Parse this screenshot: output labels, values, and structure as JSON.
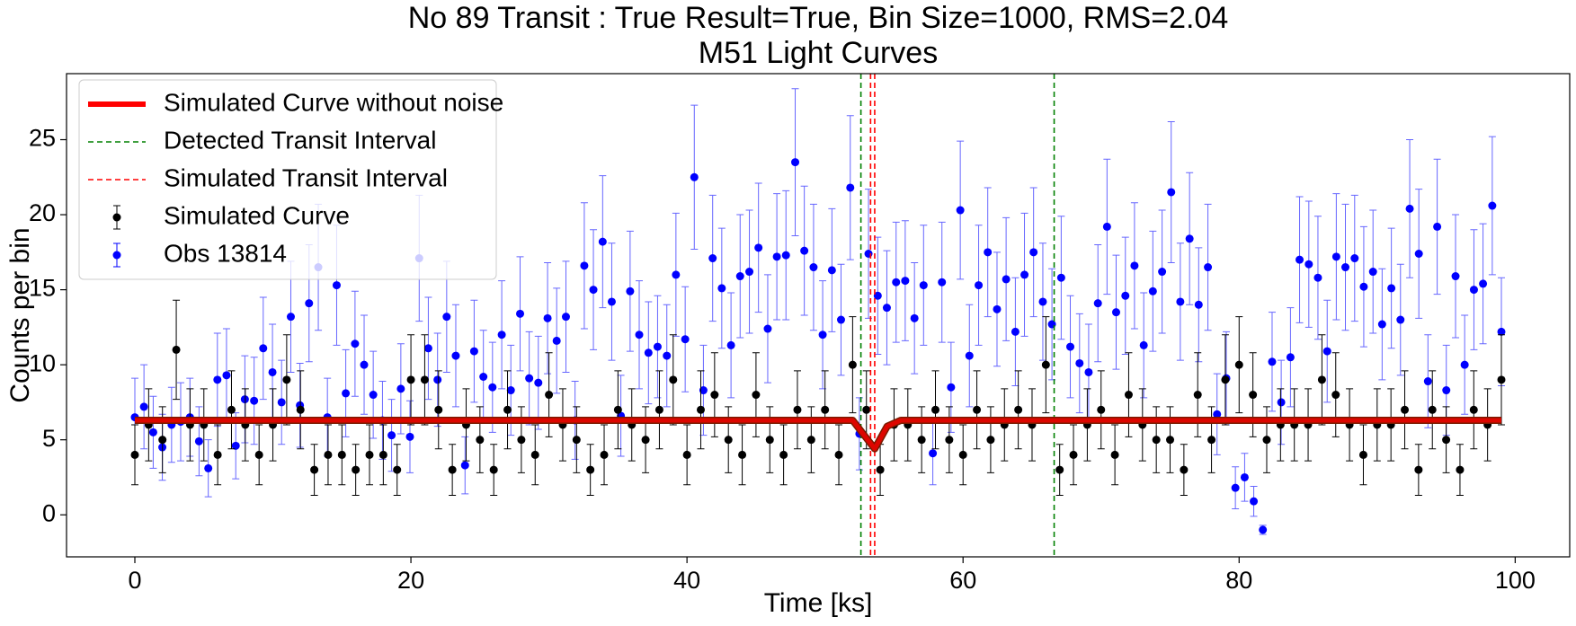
{
  "chart_data": {
    "type": "errorbar",
    "title": "No 89 Transit : True Result=True, Bin Size=1000, RMS=2.04",
    "subtitle": "M51 Light Curves",
    "xlabel": "Time [ks]",
    "ylabel": "Counts per bin",
    "xlim": [
      -4.95,
      103.95
    ],
    "ylim": [
      -2.8,
      29.4
    ],
    "xticks": [
      0,
      20,
      40,
      60,
      80,
      100
    ],
    "yticks": [
      0,
      5,
      10,
      15,
      20,
      25
    ],
    "legend": "upper left",
    "series": [
      {
        "name": "Simulated Curve without noise",
        "type": "line",
        "color": "#ff0000",
        "x": [
          0,
          52,
          53.6,
          54.5,
          55.5,
          99
        ],
        "values": [
          6.3,
          6.3,
          4.4,
          5.9,
          6.3,
          6.3
        ]
      },
      {
        "name": "Detected Transit Interval",
        "type": "vline",
        "color": "#008000",
        "x": [
          52.6,
          66.6
        ]
      },
      {
        "name": "Simulated Transit Interval",
        "type": "vline",
        "color": "#ff0000",
        "x": [
          53.3,
          53.6
        ]
      },
      {
        "name": "Simulated Curve",
        "type": "errorbar",
        "color": "#000000",
        "x": [
          0,
          1,
          2,
          3,
          4,
          5,
          6,
          7,
          8,
          9,
          10,
          11,
          12,
          13,
          14,
          15,
          16,
          17,
          18,
          19,
          20,
          21,
          22,
          23,
          24,
          25,
          26,
          27,
          28,
          29,
          30,
          31,
          32,
          33,
          34,
          35,
          36,
          37,
          38,
          39,
          40,
          41,
          42,
          43,
          44,
          45,
          46,
          47,
          48,
          49,
          50,
          51,
          52,
          53,
          54,
          55,
          56,
          57,
          58,
          59,
          60,
          61,
          62,
          63,
          64,
          65,
          66,
          67,
          68,
          69,
          70,
          71,
          72,
          73,
          74,
          75,
          76,
          77,
          78,
          79,
          80,
          81,
          82,
          83,
          84,
          85,
          86,
          87,
          88,
          89,
          90,
          91,
          92,
          93,
          94,
          95,
          96,
          97,
          98,
          99
        ],
        "values": [
          4,
          6,
          5,
          11,
          6,
          6,
          4,
          7,
          6,
          4,
          6,
          9,
          7,
          3,
          4,
          4,
          3,
          4,
          4,
          3,
          9,
          9,
          7,
          3,
          6,
          5,
          3,
          7,
          5,
          4,
          8,
          6,
          5,
          3,
          4,
          7,
          6,
          5,
          7,
          9,
          4,
          7,
          8,
          5,
          4,
          8,
          5,
          4,
          7,
          5,
          7,
          4,
          10,
          7,
          3,
          6,
          6,
          5,
          7,
          5,
          4,
          7,
          5,
          6,
          7,
          6,
          10,
          3,
          4,
          6,
          7,
          4,
          8,
          6,
          5,
          5,
          3,
          8,
          5,
          9,
          10,
          8,
          5,
          6,
          6,
          6,
          9,
          8,
          6,
          4,
          6,
          6,
          7,
          3,
          7,
          5,
          3,
          7,
          6,
          9
        ],
        "errors": [
          2,
          2.4,
          2.2,
          3.3,
          2.4,
          2.4,
          2,
          2.6,
          2.4,
          2,
          2.4,
          3,
          2.6,
          1.7,
          2,
          2,
          1.7,
          2,
          2,
          1.7,
          3,
          3,
          2.6,
          1.7,
          2.4,
          2.2,
          1.7,
          2.6,
          2.2,
          2,
          2.8,
          2.4,
          2.2,
          1.7,
          2,
          2.6,
          2.4,
          2.2,
          2.6,
          3,
          2,
          2.6,
          2.8,
          2.2,
          2,
          2.8,
          2.2,
          2,
          2.6,
          2.2,
          2.6,
          2,
          3.2,
          2.6,
          1.7,
          2.4,
          2.4,
          2.2,
          2.6,
          2.2,
          2,
          2.6,
          2.2,
          2.4,
          2.6,
          2.4,
          3.2,
          1.7,
          2,
          2.4,
          2.6,
          2,
          2.8,
          2.4,
          2.2,
          2.2,
          1.7,
          2.8,
          2.2,
          3,
          3.2,
          2.8,
          2.2,
          2.4,
          2.4,
          2.4,
          3,
          2.8,
          2.4,
          2,
          2.4,
          2.4,
          2.6,
          1.7,
          2.6,
          2.2,
          1.7,
          2.6,
          2.4,
          3
        ]
      },
      {
        "name": "Obs 13814",
        "type": "errorbar",
        "color": "#0000ff",
        "x": [
          0,
          0.66,
          1.33,
          1.99,
          2.66,
          3.32,
          3.99,
          4.65,
          5.32,
          5.98,
          6.64,
          7.31,
          7.97,
          8.64,
          9.3,
          9.97,
          10.63,
          11.3,
          11.96,
          12.62,
          13.29,
          13.95,
          14.62,
          15.28,
          15.95,
          16.61,
          17.27,
          17.94,
          18.6,
          19.27,
          19.93,
          20.6,
          21.26,
          21.93,
          22.59,
          23.25,
          23.92,
          24.58,
          25.25,
          25.91,
          26.58,
          27.24,
          27.91,
          28.57,
          29.23,
          29.9,
          30.56,
          31.23,
          31.89,
          32.56,
          33.22,
          33.89,
          34.55,
          35.21,
          35.88,
          36.54,
          37.21,
          37.87,
          38.54,
          39.2,
          39.87,
          40.53,
          41.19,
          41.86,
          42.52,
          43.19,
          43.85,
          44.52,
          45.18,
          45.85,
          46.51,
          47.17,
          47.84,
          48.5,
          49.17,
          49.83,
          50.5,
          51.16,
          51.83,
          52.49,
          53.15,
          53.82,
          54.48,
          55.15,
          55.81,
          56.48,
          57.14,
          57.81,
          58.47,
          59.13,
          59.8,
          60.46,
          61.13,
          61.79,
          62.46,
          63.12,
          63.79,
          64.45,
          65.11,
          65.78,
          66.44,
          67.11,
          67.77,
          68.44,
          69.1,
          69.77,
          70.43,
          71.09,
          71.76,
          72.42,
          73.09,
          73.75,
          74.42,
          75.08,
          75.74,
          76.41,
          77.07,
          77.74,
          78.4,
          79.07,
          79.73,
          80.4,
          81.06,
          81.72,
          82.39,
          83.05,
          83.72,
          84.38,
          85.05,
          85.71,
          86.38,
          87.04,
          87.7,
          88.37,
          89.03,
          89.7,
          90.36,
          91.03,
          91.69,
          92.36,
          93.02,
          93.68,
          94.35,
          95.01,
          95.68,
          96.34,
          97.01,
          97.67,
          98.34,
          99
        ],
        "values": [
          6.5,
          7.2,
          5.5,
          4.5,
          6.0,
          6.2,
          6.5,
          4.9,
          3.1,
          9.0,
          9.3,
          4.6,
          7.7,
          7.6,
          11.1,
          9.5,
          7.5,
          13.2,
          7.3,
          14.1,
          16.5,
          6.5,
          15.3,
          8.1,
          11.4,
          10.0,
          8.0,
          6.3,
          5.3,
          8.4,
          5.2,
          17.1,
          11.1,
          9.0,
          13.2,
          10.6,
          3.3,
          10.9,
          9.2,
          8.5,
          12.0,
          8.3,
          13.4,
          9.1,
          8.8,
          13.1,
          11.6,
          13.2,
          6.3,
          16.6,
          15.0,
          18.2,
          14.2,
          6.6,
          14.9,
          12.0,
          10.8,
          11.2,
          10.6,
          16.0,
          11.7,
          22.5,
          8.3,
          17.1,
          15.1,
          11.3,
          15.9,
          16.2,
          17.8,
          12.4,
          17.2,
          17.3,
          23.5,
          17.6,
          16.5,
          12.0,
          16.3,
          13.0,
          21.8,
          5.4,
          17.4,
          14.6,
          13.8,
          15.5,
          15.6,
          13.1,
          15.3,
          4.1,
          15.5,
          8.5,
          20.3,
          10.6,
          15.3,
          17.5,
          13.7,
          15.7,
          12.2,
          16.0,
          17.5,
          14.2,
          12.7,
          15.8,
          11.2,
          10.1,
          9.5,
          14.1,
          19.2,
          13.5,
          14.6,
          16.6,
          11.3,
          14.9,
          16.2,
          21.5,
          14.2,
          18.4,
          14.0,
          16.5,
          6.7,
          9.1,
          1.8,
          2.5,
          0.9,
          -1.0,
          10.2,
          7.5,
          10.5,
          17.0,
          16.7,
          15.8,
          10.9,
          17.2,
          16.5,
          17.1,
          15.2,
          16.2,
          12.7,
          15.1,
          13.0,
          20.4,
          17.4,
          8.9,
          19.2,
          8.3,
          15.9,
          10.0,
          15.0,
          15.4,
          20.6,
          12.2
        ],
        "errors": [
          2.6,
          2.8,
          2.4,
          2.2,
          2.5,
          2.6,
          2.6,
          2.3,
          1.9,
          3.1,
          3.1,
          2.2,
          2.9,
          2.9,
          3.4,
          3.2,
          2.8,
          3.7,
          2.8,
          3.9,
          4.2,
          2.6,
          4.0,
          2.9,
          3.5,
          3.3,
          2.9,
          2.6,
          2.4,
          3.0,
          2.4,
          4.2,
          3.4,
          3.1,
          3.7,
          3.4,
          1.9,
          3.4,
          3.1,
          3.0,
          3.6,
          3.0,
          3.8,
          3.1,
          3.1,
          3.7,
          3.5,
          3.7,
          2.6,
          4.2,
          4.0,
          4.4,
          3.9,
          2.7,
          4.0,
          3.6,
          3.4,
          3.4,
          3.4,
          4.1,
          3.5,
          4.8,
          3.0,
          4.2,
          4.0,
          3.5,
          4.1,
          4.1,
          4.3,
          3.6,
          4.2,
          4.3,
          4.9,
          4.3,
          4.2,
          3.6,
          4.1,
          3.7,
          4.8,
          2.4,
          4.3,
          3.9,
          3.8,
          4.0,
          4.0,
          3.7,
          4.0,
          2.1,
          4.0,
          3.0,
          4.6,
          3.4,
          4.0,
          4.3,
          3.8,
          4.1,
          3.6,
          4.1,
          4.3,
          3.9,
          3.7,
          4.1,
          3.4,
          3.3,
          3.2,
          3.9,
          4.5,
          3.8,
          3.9,
          4.2,
          3.5,
          4.0,
          4.1,
          4.7,
          3.9,
          4.4,
          3.8,
          4.2,
          2.7,
          3.1,
          1.4,
          1.6,
          1.0,
          0.3,
          3.3,
          2.8,
          3.3,
          4.2,
          4.2,
          4.1,
          3.4,
          4.2,
          4.2,
          4.2,
          4.0,
          4.1,
          3.7,
          4.0,
          3.7,
          4.6,
          4.3,
          3.1,
          4.5,
          3.0,
          4.1,
          3.3,
          4.0,
          4.0,
          4.6,
          3.6
        ]
      }
    ]
  }
}
